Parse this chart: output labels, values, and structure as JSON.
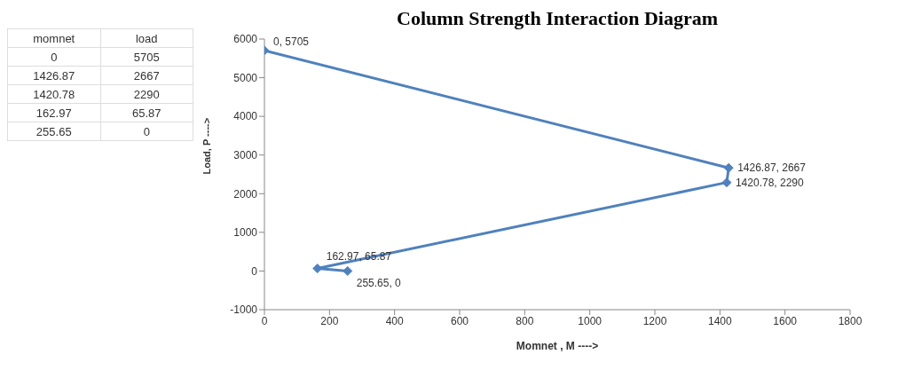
{
  "chart_data": [
    {
      "type": "other",
      "annotations": [
        "momnet",
        "load",
        "0",
        "5705",
        "1426.87",
        "2667",
        "1420.78",
        "2290",
        "162.97",
        "65.87",
        "255.65",
        "0"
      ]
    },
    {
      "type": "line",
      "title": "Column Strength Interaction Diagram",
      "xlabel": "Momnet , M ---->",
      "ylabel": "Load, P ---->",
      "x": [
        0,
        1426.87,
        1420.78,
        162.97,
        255.65
      ],
      "series": [
        {
          "color": "#4f81bd",
          "values": [
            5705,
            2667,
            2290,
            65.87,
            0
          ],
          "value_labels": [
            "0, 5705",
            "1426.87, 2667",
            "1420.78, 2290",
            "162.97, 65.87",
            "255.65, 0"
          ]
        }
      ],
      "xlim": [
        0,
        1800
      ],
      "xticks": [
        0,
        200,
        400,
        600,
        800,
        1000,
        1200,
        1400,
        1600,
        1800
      ],
      "ylim": [
        -1000,
        6000
      ],
      "yticks": [
        -1000,
        0,
        1000,
        2000,
        3000,
        4000,
        5000,
        6000
      ],
      "marker": "diamond"
    }
  ]
}
